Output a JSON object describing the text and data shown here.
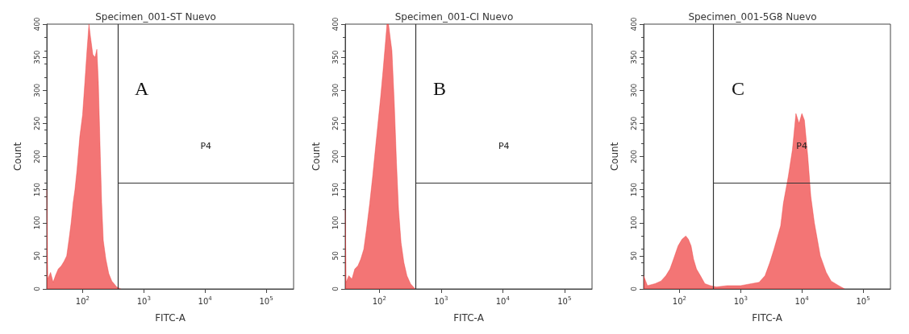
{
  "chart_data": [
    {
      "type": "area",
      "title": "Specimen_001-ST Nuevo",
      "xlabel": "FITC-A",
      "ylabel": "Count",
      "log": "x",
      "color": "#ee3b3b",
      "x": [
        26,
        27,
        30,
        33,
        36,
        40,
        45,
        50,
        55,
        60,
        65,
        70,
        75,
        81,
        90,
        100,
        109,
        118,
        127,
        135,
        147,
        160,
        171,
        181,
        195,
        205,
        218,
        240,
        268,
        300,
        361,
        420
      ],
      "values": [
        150,
        15,
        25,
        10,
        20,
        30,
        35,
        42,
        50,
        75,
        100,
        130,
        150,
        180,
        230,
        263,
        313,
        360,
        400,
        380,
        354,
        350,
        362,
        313,
        200,
        130,
        73,
        45,
        23,
        12,
        3,
        0
      ],
      "xlim": [
        26,
        280000
      ],
      "ylim": [
        0,
        400
      ],
      "xticks": [
        {
          "value": 100,
          "label": "10$^{2}$"
        },
        {
          "value": 1000,
          "label": "10$^{3}$"
        },
        {
          "value": 10000,
          "label": "10$^{4}$"
        },
        {
          "value": 100000,
          "label": "10$^{5}$"
        }
      ],
      "yticks": [
        0,
        50,
        100,
        150,
        200,
        250,
        300,
        350,
        400
      ],
      "ref_lines": [
        {
          "axis": "x",
          "value": 380
        },
        {
          "axis": "y",
          "value": 160,
          "label": "P4"
        }
      ],
      "annotations": [
        "A"
      ]
    },
    {
      "type": "area",
      "title": "Specimen_001-CI Nuevo",
      "xlabel": "FITC-A",
      "ylabel": "Count",
      "log": "x",
      "color": "#ee3b3b",
      "x": [
        28,
        29,
        32,
        36,
        40,
        45,
        50,
        56,
        62,
        70,
        78,
        86,
        95,
        105,
        115,
        125,
        133,
        141,
        150,
        160,
        175,
        190,
        205,
        225,
        250,
        280,
        320,
        380
      ],
      "values": [
        120,
        10,
        20,
        15,
        30,
        35,
        45,
        60,
        90,
        130,
        170,
        210,
        250,
        290,
        330,
        370,
        400,
        400,
        380,
        360,
        280,
        190,
        120,
        70,
        40,
        20,
        8,
        0
      ],
      "xlim": [
        28,
        280000
      ],
      "ylim": [
        0,
        400
      ],
      "xticks": [
        {
          "value": 100,
          "label": "10$^{2}$"
        },
        {
          "value": 1000,
          "label": "10$^{3}$"
        },
        {
          "value": 10000,
          "label": "10$^{4}$"
        },
        {
          "value": 100000,
          "label": "10$^{5}$"
        }
      ],
      "yticks": [
        0,
        50,
        100,
        150,
        200,
        250,
        300,
        350,
        400
      ],
      "ref_lines": [
        {
          "axis": "x",
          "value": 390
        },
        {
          "axis": "y",
          "value": 160,
          "label": "P4"
        }
      ],
      "annotations": [
        "B"
      ]
    },
    {
      "type": "area",
      "title": "Specimen_001-5G8 Nuevo",
      "xlabel": "FITC-A",
      "ylabel": "Count",
      "log": "x",
      "color": "#ee3b3b",
      "x": [
        26,
        30,
        40,
        50,
        60,
        70,
        80,
        95,
        110,
        127,
        140,
        155,
        170,
        190,
        220,
        260,
        320,
        400,
        600,
        1000,
        1500,
        2000,
        2500,
        3000,
        3500,
        4500,
        5000,
        6000,
        7000,
        8000,
        9000,
        10000,
        11000,
        12500,
        14000,
        16000,
        20000,
        25000,
        30000,
        40000,
        50000
      ],
      "values": [
        20,
        5,
        8,
        12,
        20,
        30,
        45,
        65,
        75,
        80,
        75,
        65,
        45,
        30,
        20,
        8,
        5,
        3,
        5,
        5,
        8,
        10,
        20,
        40,
        60,
        95,
        130,
        170,
        210,
        265,
        250,
        265,
        255,
        200,
        140,
        100,
        50,
        25,
        12,
        5,
        0
      ],
      "xlim": [
        26,
        280000
      ],
      "ylim": [
        0,
        400
      ],
      "xticks": [
        {
          "value": 100,
          "label": "10$^{2}$"
        },
        {
          "value": 1000,
          "label": "10$^{3}$"
        },
        {
          "value": 10000,
          "label": "10$^{4}$"
        },
        {
          "value": 100000,
          "label": "10$^{5}$"
        }
      ],
      "yticks": [
        0,
        50,
        100,
        150,
        200,
        250,
        300,
        350,
        400
      ],
      "ref_lines": [
        {
          "axis": "x",
          "value": 355
        },
        {
          "axis": "y",
          "value": 160,
          "label": "P4"
        }
      ],
      "annotations": [
        "C"
      ]
    }
  ]
}
